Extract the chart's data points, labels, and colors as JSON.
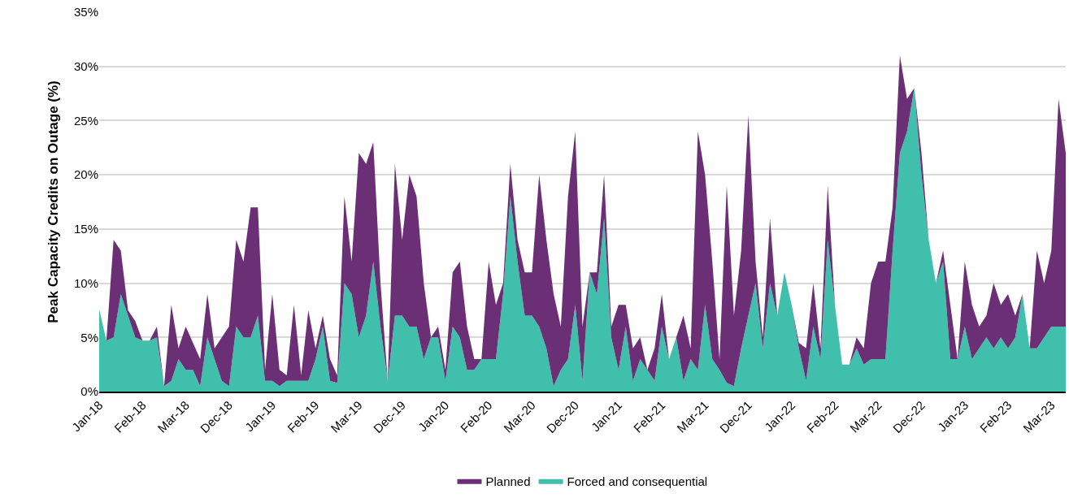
{
  "chart_data": {
    "type": "area",
    "stacked": true,
    "ylabel": "Peak Capacity Credits on Outage (%)",
    "categories": [
      "Jan-18",
      null,
      null,
      null,
      null,
      null,
      "Feb-18",
      null,
      null,
      null,
      null,
      null,
      "Mar-18",
      null,
      null,
      null,
      null,
      null,
      "Dec-18",
      null,
      null,
      null,
      null,
      null,
      "Jan-19",
      null,
      null,
      null,
      null,
      null,
      "Feb-19",
      null,
      null,
      null,
      null,
      null,
      "Mar-19",
      null,
      null,
      null,
      null,
      null,
      "Dec-19",
      null,
      null,
      null,
      null,
      null,
      "Jan-20",
      null,
      null,
      null,
      null,
      null,
      "Feb-20",
      null,
      null,
      null,
      null,
      null,
      "Mar-20",
      null,
      null,
      null,
      null,
      null,
      "Dec-20",
      null,
      null,
      null,
      null,
      null,
      "Jan-21",
      null,
      null,
      null,
      null,
      null,
      "Feb-21",
      null,
      null,
      null,
      null,
      null,
      "Mar-21",
      null,
      null,
      null,
      null,
      null,
      "Dec-21",
      null,
      null,
      null,
      null,
      null,
      "Jan-22",
      null,
      null,
      null,
      null,
      null,
      "Feb-22",
      null,
      null,
      null,
      null,
      null,
      "Mar-22",
      null,
      null,
      null,
      null,
      null,
      "Dec-22",
      null,
      null,
      null,
      null,
      null,
      "Jan-23",
      null,
      null,
      null,
      null,
      null,
      "Feb-23",
      null,
      null,
      null,
      null,
      null,
      "Mar-23",
      null,
      null
    ],
    "series": [
      {
        "name": "Forced and consequential",
        "color": "#40bfac",
        "values": [
          7.6,
          4.7,
          5,
          9,
          7,
          5,
          4.7,
          4.7,
          5,
          0.5,
          1,
          3,
          2,
          2,
          0.5,
          5,
          3,
          1,
          0.5,
          6,
          5,
          5,
          7,
          1,
          1,
          0.5,
          1,
          1,
          1,
          1,
          3,
          6,
          1,
          0.8,
          10,
          9,
          5,
          7,
          12,
          6,
          1,
          7,
          7,
          6,
          6,
          3,
          5,
          5,
          1,
          6,
          5,
          2,
          2,
          3,
          3,
          3,
          9,
          18,
          12,
          7,
          7,
          6,
          4,
          0.5,
          2,
          3,
          8,
          1,
          11,
          9,
          16,
          5,
          2,
          6,
          1,
          3,
          2,
          1,
          6,
          3,
          5,
          1,
          3,
          2,
          8,
          3,
          2,
          0.8,
          0.5,
          4,
          7,
          10,
          4,
          10,
          7,
          11,
          8,
          4,
          1,
          6,
          3,
          14,
          8,
          2.5,
          2.5,
          4,
          2.5,
          3,
          3,
          3,
          13,
          22,
          24,
          28,
          20,
          14,
          10,
          12,
          3,
          3,
          6,
          3,
          4,
          5,
          4,
          5,
          4,
          5,
          9,
          4,
          4,
          5,
          6,
          6,
          6
        ]
      },
      {
        "name": "Planned",
        "color": "#6b2f76",
        "values": [
          0,
          0,
          9,
          4,
          0.5,
          1.5,
          0,
          0,
          1,
          0,
          7,
          1,
          4,
          2.5,
          2.5,
          4,
          1,
          4,
          5.5,
          8,
          7,
          12,
          10,
          1,
          8,
          1.5,
          0.5,
          7,
          0.5,
          6.5,
          1,
          1,
          2,
          0.7,
          8,
          3,
          17,
          14,
          11,
          4,
          0,
          14,
          7,
          14,
          12,
          7,
          0,
          1,
          1,
          5,
          7,
          4,
          1,
          0,
          9,
          5,
          1,
          3,
          2,
          4,
          4,
          14,
          10,
          8.5,
          4,
          15,
          16,
          5,
          0,
          2,
          4,
          1,
          6,
          2,
          3,
          2,
          0,
          3,
          3,
          0,
          0,
          6,
          1,
          22,
          12,
          9,
          1,
          18.2,
          6.5,
          9,
          18.5,
          2,
          1,
          6,
          0,
          0,
          0,
          0.5,
          3,
          4,
          1,
          5,
          0,
          0,
          0,
          1,
          1.5,
          7,
          9,
          9,
          4,
          9,
          3,
          0,
          2,
          0,
          0,
          1,
          5,
          0,
          6,
          5,
          2,
          2,
          6,
          3,
          5,
          2,
          0,
          0,
          9,
          5,
          7,
          21,
          16
        ]
      }
    ],
    "ylim": [
      0,
      35
    ],
    "yticks": [
      {
        "value": 0,
        "label": "0%"
      },
      {
        "value": 5,
        "label": "5%"
      },
      {
        "value": 10,
        "label": "10%"
      },
      {
        "value": 15,
        "label": "15%"
      },
      {
        "value": 20,
        "label": "20%"
      },
      {
        "value": 25,
        "label": "25%"
      },
      {
        "value": 30,
        "label": "30%"
      },
      {
        "value": 35,
        "label": "35%"
      }
    ],
    "grid": "y",
    "legend": "bottom"
  }
}
